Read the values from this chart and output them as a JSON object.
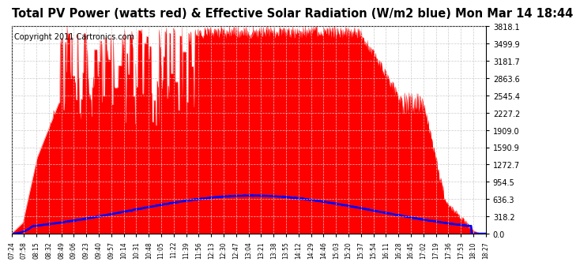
{
  "title": "Total PV Power (watts red) & Effective Solar Radiation (W/m2 blue) Mon Mar 14 18:44",
  "copyright": "Copyright 2011 Cartronics.com",
  "y_max": 3818.1,
  "y_ticks": [
    0.0,
    318.2,
    636.3,
    954.5,
    1272.7,
    1590.9,
    1909.0,
    2227.2,
    2545.4,
    2863.6,
    3181.7,
    3499.9,
    3818.1
  ],
  "x_labels": [
    "07:24",
    "07:58",
    "08:15",
    "08:32",
    "08:49",
    "09:06",
    "09:23",
    "09:40",
    "09:57",
    "10:14",
    "10:31",
    "10:48",
    "11:05",
    "11:22",
    "11:39",
    "11:56",
    "12:13",
    "12:30",
    "12:47",
    "13:04",
    "13:21",
    "13:38",
    "13:55",
    "14:12",
    "14:29",
    "14:46",
    "15:03",
    "15:20",
    "15:37",
    "15:54",
    "16:11",
    "16:28",
    "16:45",
    "17:02",
    "17:19",
    "17:36",
    "17:53",
    "18:10",
    "18:27"
  ],
  "background_color": "#ffffff",
  "red_color": "#ff0000",
  "blue_color": "#0000ff",
  "grid_color": "#cccccc",
  "title_fontsize": 10.5,
  "copyright_fontsize": 7
}
